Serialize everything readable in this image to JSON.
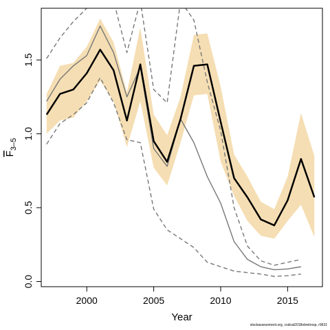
{
  "chart_data": {
    "type": "line",
    "xlabel": "Year",
    "ylabel": "F",
    "ylabel_subscript": "3–5",
    "xlim": [
      1996.6,
      2017.6
    ],
    "ylim": [
      -0.035,
      1.85
    ],
    "x_ticks": [
      2000,
      2005,
      2010,
      2015
    ],
    "y_ticks": [
      0.0,
      0.5,
      1.0,
      1.5
    ],
    "y_tick_labels": [
      "0.0",
      "0.5",
      "1.0",
      "1.5"
    ],
    "grid": false,
    "legend": "none",
    "colors": {
      "band": "#f5deb3",
      "estimate": "#000000",
      "retro": "#777777"
    },
    "band": {
      "x": [
        1997,
        1998,
        1999,
        2000,
        2001,
        2002,
        2003,
        2004,
        2005,
        2006,
        2007,
        2008,
        2009,
        2010,
        2011,
        2012,
        2013,
        2014,
        2015,
        2016,
        2017
      ],
      "lower": [
        1.0,
        1.09,
        1.11,
        1.22,
        1.36,
        1.22,
        0.91,
        1.22,
        0.77,
        0.65,
        0.94,
        1.26,
        1.27,
        0.81,
        0.58,
        0.41,
        0.31,
        0.29,
        0.41,
        0.52,
        0.3
      ],
      "upper": [
        1.27,
        1.46,
        1.48,
        1.59,
        1.78,
        1.62,
        1.28,
        1.72,
        1.13,
        0.99,
        1.25,
        1.67,
        1.68,
        1.32,
        0.86,
        0.71,
        0.54,
        0.49,
        0.71,
        1.14,
        0.85
      ]
    },
    "series": [
      {
        "x": [
          1997,
          1998,
          1999,
          2000,
          2001,
          2002,
          2003,
          2004,
          2005,
          2006,
          2007,
          2008,
          2009,
          2010,
          2011,
          2012,
          2013,
          2014,
          2015,
          2016,
          2017
        ],
        "values": [
          1.13,
          1.27,
          1.3,
          1.41,
          1.57,
          1.43,
          1.09,
          1.47,
          0.95,
          0.81,
          1.1,
          1.46,
          1.47,
          1.08,
          0.7,
          0.57,
          0.42,
          0.38,
          0.55,
          0.83,
          0.57
        ],
        "style": "solid-bold"
      },
      {
        "x": [
          1997,
          1998,
          1999,
          2000,
          2001,
          2002,
          2003,
          2004,
          2005,
          2006,
          2007,
          2008,
          2009,
          2010,
          2011,
          2012,
          2013,
          2014,
          2015,
          2016
        ],
        "values": [
          1.22,
          1.37,
          1.46,
          1.53,
          1.73,
          1.55,
          1.25,
          1.45,
          0.9,
          0.78,
          1.1,
          0.94,
          0.71,
          0.53,
          0.27,
          0.15,
          0.1,
          0.08,
          0.085,
          0.1
        ],
        "style": "solid-gray"
      },
      {
        "x": [
          1997,
          1998,
          1999,
          2000,
          2001,
          2002,
          2003,
          2004,
          2005,
          2006,
          2007,
          2008,
          2009,
          2010,
          2011,
          2012,
          2013,
          2014,
          2015,
          2016
        ],
        "values": [
          1.51,
          1.65,
          1.76,
          1.85,
          1.9,
          1.9,
          1.55,
          1.9,
          1.3,
          1.21,
          1.9,
          1.77,
          1.35,
          1.02,
          0.5,
          0.24,
          0.14,
          0.11,
          0.13,
          0.15
        ],
        "style": "dashed-gray"
      },
      {
        "x": [
          1997,
          1998,
          1999,
          2000,
          2001,
          2002,
          2003,
          2004,
          2005,
          2006,
          2007,
          2008,
          2009,
          2010,
          2011,
          2012,
          2013,
          2014,
          2015,
          2016
        ],
        "values": [
          0.93,
          1.07,
          1.13,
          1.21,
          1.38,
          1.21,
          0.96,
          0.94,
          0.49,
          0.35,
          0.29,
          0.23,
          0.13,
          0.1,
          0.07,
          0.06,
          0.05,
          0.035,
          0.04,
          0.05
        ],
        "style": "dashed-gray"
      }
    ]
  },
  "footer": "stockassessment.org, codcat2018obretrosp, r9631"
}
